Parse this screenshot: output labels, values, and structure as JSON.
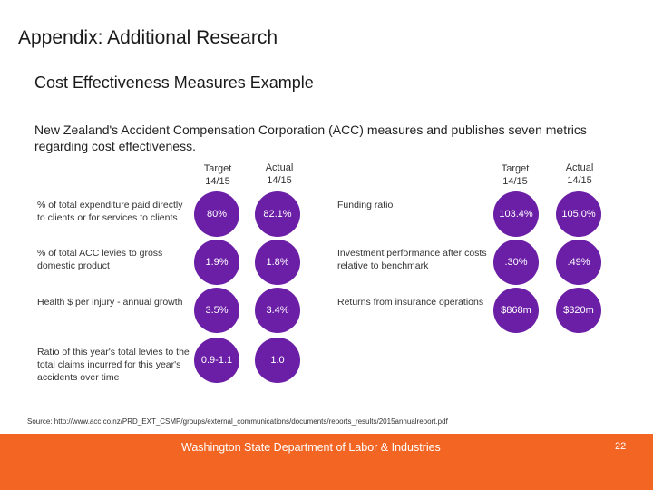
{
  "title": "Appendix: Additional Research",
  "subtitle": "Cost Effectiveness Measures Example",
  "intro": "New Zealand's Accident Compensation Corporation (ACC) measures and publishes seven metrics regarding cost effectiveness.",
  "headers": {
    "target": "Target 14/15",
    "actual": "Actual 14/15"
  },
  "left_metrics": [
    {
      "label": "% of total expenditure paid directly to clients or for services to clients",
      "target": "80%",
      "actual": "82.1%"
    },
    {
      "label": "% of total ACC levies to gross domestic product",
      "target": "1.9%",
      "actual": "1.8%"
    },
    {
      "label": "Health $ per injury - annual growth",
      "target": "3.5%",
      "actual": "3.4%"
    },
    {
      "label": "Ratio of this year's total levies to the total claims incurred for this year's accidents over time",
      "target": "0.9-1.1",
      "actual": "1.0"
    }
  ],
  "right_metrics": [
    {
      "label": "Funding ratio",
      "target": "103.4%",
      "actual": "105.0%"
    },
    {
      "label": "Investment performance after costs relative to benchmark",
      "target": ".30%",
      "actual": ".49%"
    },
    {
      "label": "Returns from insurance operations",
      "target": "$868m",
      "actual": "$320m"
    }
  ],
  "source": "Source: http://www.acc.co.nz/PRD_EXT_CSMP/groups/external_communications/documents/reports_results/2015annualreport.pdf",
  "footer": "Washington State Department of Labor & Industries",
  "page_number": "22",
  "colors": {
    "circle": "#6b1ea6",
    "footer": "#f26522"
  }
}
